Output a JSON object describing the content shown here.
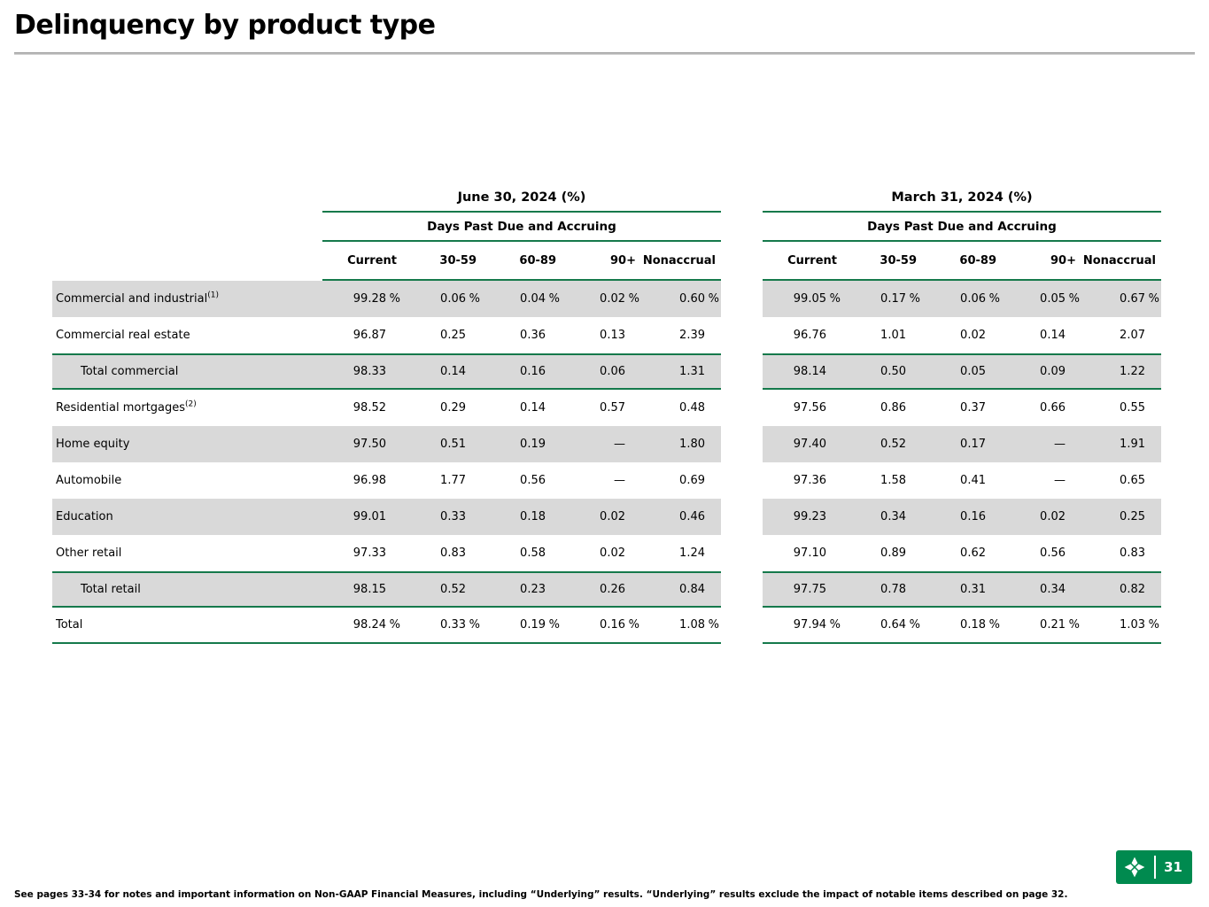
{
  "slide": {
    "title": "Delinquency by product type",
    "footnote": "See pages 33-34 for notes and important information on Non-GAAP Financial Measures, including “Underlying” results. “Underlying” results exclude the impact of notable items described on page 32.",
    "page_number": "31"
  },
  "table": {
    "periods": [
      {
        "title": "June 30, 2024 (%)",
        "subtitle": "Days Past Due and Accruing"
      },
      {
        "title": "March 31, 2024 (%)",
        "subtitle": "Days Past Due and Accruing"
      }
    ],
    "columns": [
      "Current",
      "30-59",
      "60-89",
      "90+",
      "Nonaccrual"
    ],
    "rows": [
      {
        "label": "Commercial and industrial",
        "sup": "(1)",
        "indent": false,
        "total": false,
        "last": false,
        "shaded": true,
        "june": [
          "99.28 %",
          "0.06 %",
          "0.04 %",
          "0.02 %",
          "0.60 %"
        ],
        "march": [
          "99.05 %",
          "0.17 %",
          "0.06 %",
          "0.05 %",
          "0.67 %"
        ]
      },
      {
        "label": "Commercial real estate",
        "sup": "",
        "indent": false,
        "total": false,
        "last": false,
        "shaded": false,
        "june": [
          "96.87",
          "0.25",
          "0.36",
          "0.13",
          "2.39"
        ],
        "march": [
          "96.76",
          "1.01",
          "0.02",
          "0.14",
          "2.07"
        ]
      },
      {
        "label": "Total commercial",
        "sup": "",
        "indent": true,
        "total": true,
        "last": false,
        "shaded": true,
        "june": [
          "98.33",
          "0.14",
          "0.16",
          "0.06",
          "1.31"
        ],
        "march": [
          "98.14",
          "0.50",
          "0.05",
          "0.09",
          "1.22"
        ]
      },
      {
        "label": "Residential mortgages",
        "sup": "(2)",
        "indent": false,
        "total": false,
        "last": false,
        "shaded": false,
        "june": [
          "98.52",
          "0.29",
          "0.14",
          "0.57",
          "0.48"
        ],
        "march": [
          "97.56",
          "0.86",
          "0.37",
          "0.66",
          "0.55"
        ]
      },
      {
        "label": "Home equity",
        "sup": "",
        "indent": false,
        "total": false,
        "last": false,
        "shaded": true,
        "june": [
          "97.50",
          "0.51",
          "0.19",
          "—",
          "1.80"
        ],
        "march": [
          "97.40",
          "0.52",
          "0.17",
          "—",
          "1.91"
        ]
      },
      {
        "label": "Automobile",
        "sup": "",
        "indent": false,
        "total": false,
        "last": false,
        "shaded": false,
        "june": [
          "96.98",
          "1.77",
          "0.56",
          "—",
          "0.69"
        ],
        "march": [
          "97.36",
          "1.58",
          "0.41",
          "—",
          "0.65"
        ]
      },
      {
        "label": "Education",
        "sup": "",
        "indent": false,
        "total": false,
        "last": false,
        "shaded": true,
        "june": [
          "99.01",
          "0.33",
          "0.18",
          "0.02",
          "0.46"
        ],
        "march": [
          "99.23",
          "0.34",
          "0.16",
          "0.02",
          "0.25"
        ]
      },
      {
        "label": "Other retail",
        "sup": "",
        "indent": false,
        "total": false,
        "last": false,
        "shaded": false,
        "june": [
          "97.33",
          "0.83",
          "0.58",
          "0.02",
          "1.24"
        ],
        "march": [
          "97.10",
          "0.89",
          "0.62",
          "0.56",
          "0.83"
        ]
      },
      {
        "label": "Total retail",
        "sup": "",
        "indent": true,
        "total": true,
        "last": false,
        "shaded": true,
        "june": [
          "98.15",
          "0.52",
          "0.23",
          "0.26",
          "0.84"
        ],
        "march": [
          "97.75",
          "0.78",
          "0.31",
          "0.34",
          "0.82"
        ]
      },
      {
        "label": "Total",
        "sup": "",
        "indent": false,
        "total": false,
        "last": true,
        "shaded": false,
        "june": [
          "98.24 %",
          "0.33 %",
          "0.19 %",
          "0.16 %",
          "1.08 %"
        ],
        "march": [
          "97.94 %",
          "0.64 %",
          "0.18 %",
          "0.21 %",
          "1.03 %"
        ]
      }
    ]
  },
  "colors": {
    "green": "#15794B",
    "logo_green": "#008A4F",
    "row_shade": "#D9D9D9"
  }
}
